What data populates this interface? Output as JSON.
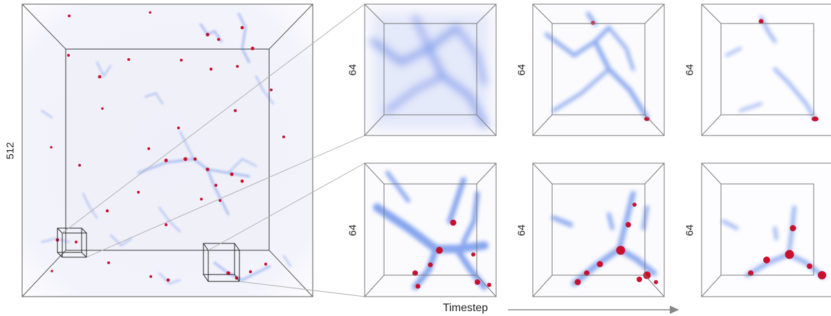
{
  "main_volume": {
    "size_label": "512"
  },
  "panels": [
    {
      "row": "top",
      "step": 1,
      "size_label": "64"
    },
    {
      "row": "top",
      "step": 2,
      "size_label": "64"
    },
    {
      "row": "top",
      "step": 3,
      "size_label": "64"
    },
    {
      "row": "bottom",
      "step": 1,
      "size_label": "64"
    },
    {
      "row": "bottom",
      "step": 2,
      "size_label": "64"
    },
    {
      "row": "bottom",
      "step": 3,
      "size_label": "64"
    }
  ],
  "axis": {
    "label": "Timestep"
  },
  "colors": {
    "filament": "#4a78e6",
    "halo": "#c8102e",
    "frame": "#555555",
    "connector": "#aaaaaa",
    "arrow": "#888888"
  }
}
